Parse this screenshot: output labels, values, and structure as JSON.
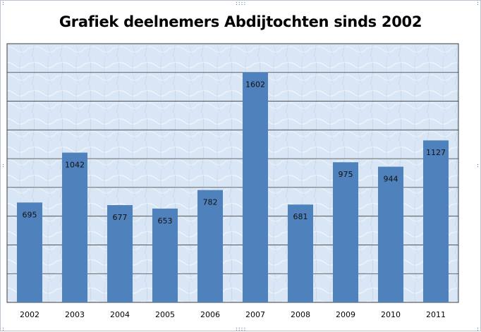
{
  "chart_data": {
    "type": "bar",
    "title": "Grafiek deelnemers Abdijtochten sinds 2002",
    "xlabel": "",
    "ylabel": "",
    "categories": [
      "2002",
      "2003",
      "2004",
      "2005",
      "2006",
      "2007",
      "2008",
      "2009",
      "2010",
      "2011"
    ],
    "values": [
      695,
      1042,
      677,
      653,
      782,
      1602,
      681,
      975,
      944,
      1127
    ],
    "ylim": [
      0,
      1800
    ],
    "grid": true,
    "legend": "none",
    "colors": {
      "bar": "#4f81bd",
      "plot_background": "#dbe7f5",
      "gridline": "#3c3c3c",
      "frame": "#b9c3d2"
    }
  }
}
